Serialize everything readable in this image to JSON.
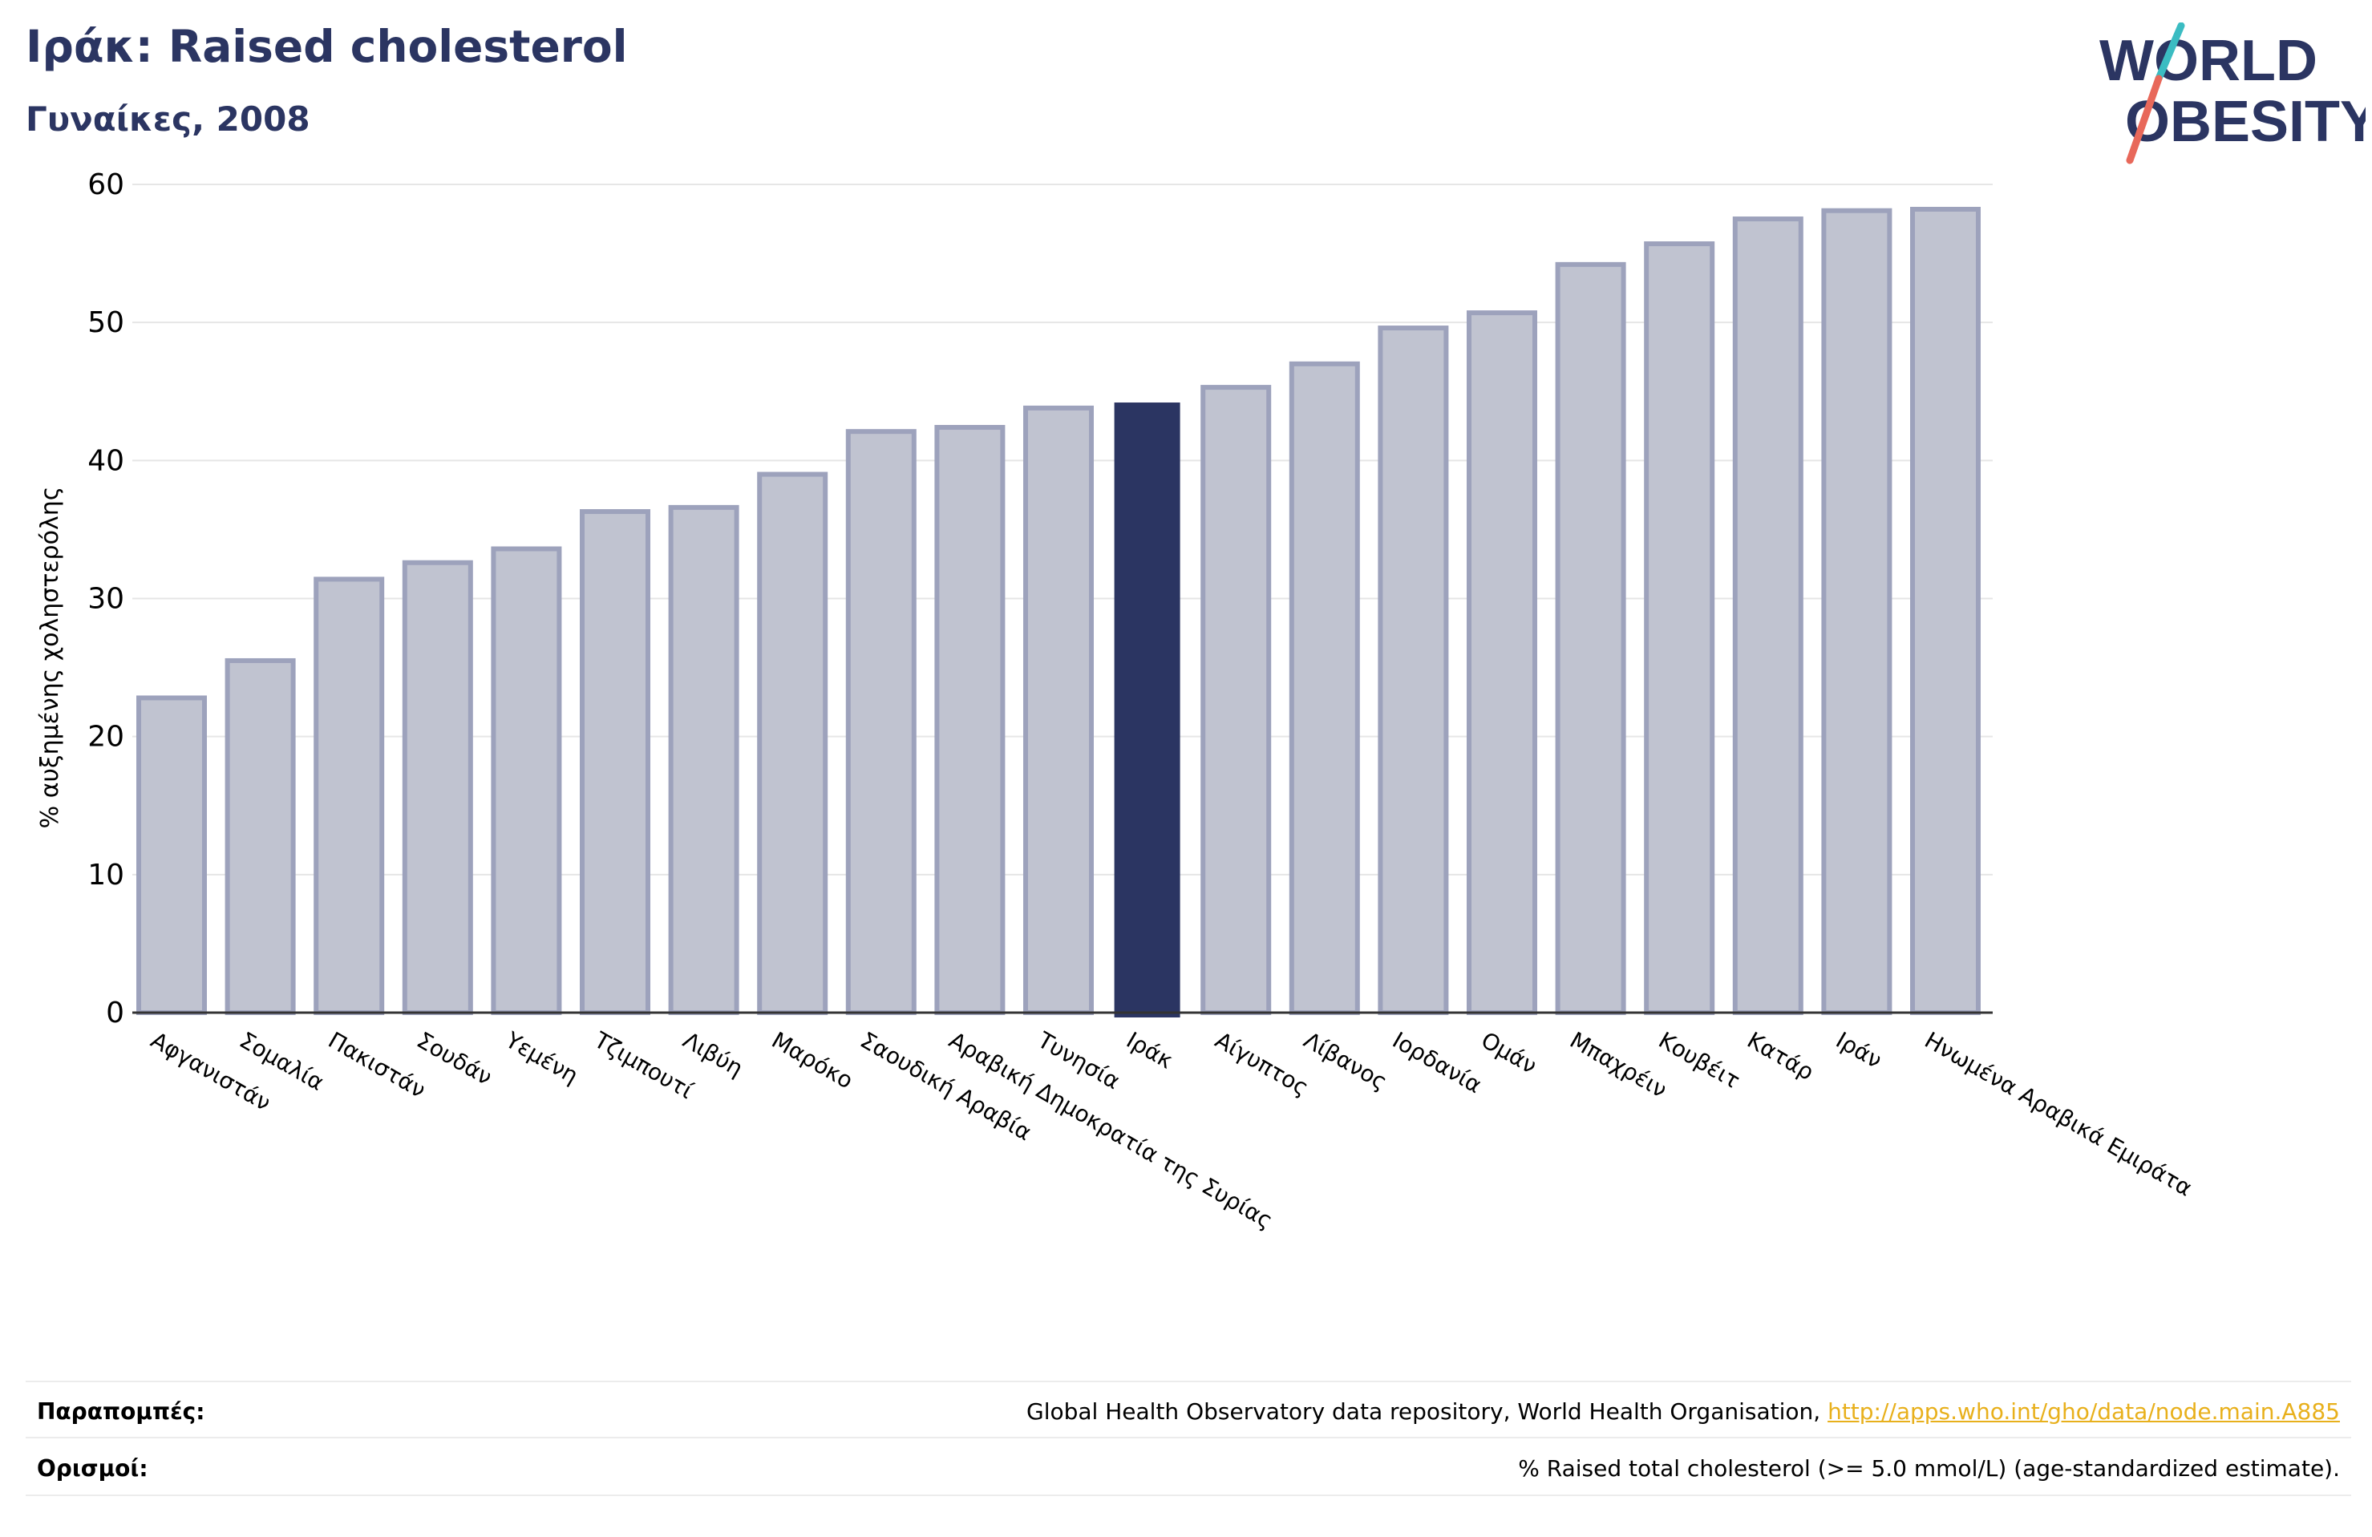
{
  "title": "Ιράκ: Raised cholesterol",
  "subtitle": "Γυναίκες, 2008",
  "logo": {
    "line1": "WORLD",
    "line2": "OBESITY",
    "colors": {
      "text": "#2b3562",
      "slash_top": "#3bbcc2",
      "slash_bottom": "#e8685a"
    }
  },
  "chart_data": {
    "type": "bar",
    "ylabel": "% αυξημένης χοληστερόλης",
    "ylim": [
      0,
      60
    ],
    "yticks": [
      0,
      10,
      20,
      30,
      40,
      50,
      60
    ],
    "grid": true,
    "highlight": "Ιράκ",
    "colors": {
      "bar": "#c0c3d0",
      "bar_edge": "#9da2bc",
      "highlight": "#2b3562",
      "grid": "#e6e6e6",
      "axis": "#333333"
    },
    "categories": [
      "Αφγανιστάν",
      "Σομαλία",
      "Πακιστάν",
      "Σουδάν",
      "Υεμένη",
      "Τζιμπουτί",
      "Λιβύη",
      "Μαρόκο",
      "Σαουδική Αραβία",
      "Αραβική Δημοκρατία της Συρίας",
      "Τυνησία",
      "Ιράκ",
      "Αίγυπτος",
      "Λίβανος",
      "Ιορδανία",
      "Ομάν",
      "Μπαχρέιν",
      "Κουβέιτ",
      "Κατάρ",
      "Ιράν",
      "Ηνωμένα Αραβικά Εμιράτα"
    ],
    "values": [
      22.8,
      25.5,
      31.4,
      32.6,
      33.6,
      36.3,
      36.6,
      39.0,
      42.1,
      42.4,
      43.8,
      44.2,
      45.3,
      47.0,
      49.6,
      50.7,
      54.2,
      55.7,
      57.5,
      58.1,
      58.2
    ]
  },
  "footer": {
    "references_label": "Παραπομπές:",
    "references_text": "Global Health Observatory data repository, World Health Organisation, ",
    "references_link": "http://apps.who.int/gho/data/node.main.A885",
    "definitions_label": "Ορισμοί:",
    "definitions_text": "% Raised total cholesterol (>= 5.0 mmol/L) (age-standardized estimate)."
  }
}
